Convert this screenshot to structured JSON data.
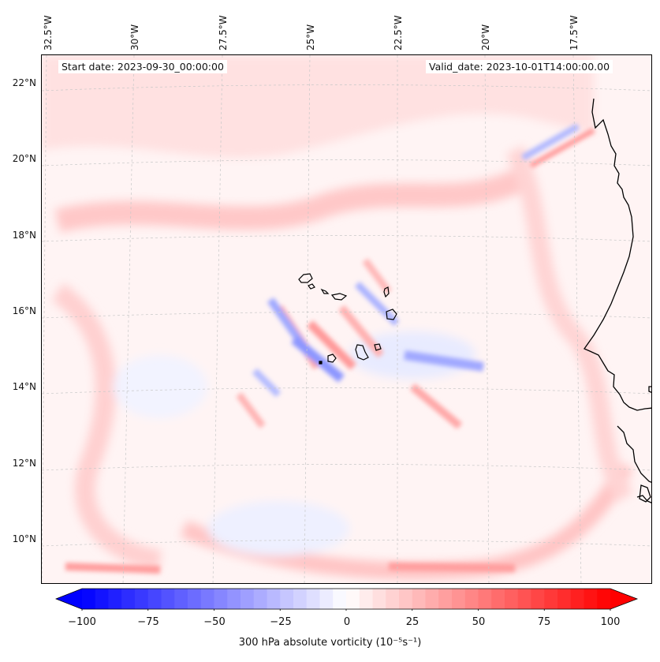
{
  "header": {
    "start_date": "Start date: 2023-09-30_00:00:00",
    "valid_date": "Valid_date: 2023-10-01T14:00:00.00"
  },
  "axes": {
    "lon_labels": [
      "32.5°W",
      "30°W",
      "27.5°W",
      "25°W",
      "22.5°W",
      "20°W",
      "17.5°W"
    ],
    "lat_labels": [
      "22°N",
      "20°N",
      "18°N",
      "16°N",
      "14°N",
      "12°N",
      "10°N"
    ]
  },
  "colorbar": {
    "ticks": [
      "−100",
      "−75",
      "−50",
      "−25",
      "0",
      "25",
      "50",
      "75",
      "100"
    ],
    "label": "300 hPa absolute vorticity (10⁻⁵s⁻¹)",
    "vmin": -100,
    "vmax": 100,
    "levels": 41,
    "negative_color": "#0000ff",
    "positive_color": "#ff0000"
  },
  "map": {
    "field": "300 hPa absolute vorticity",
    "islands": "Cape Verde",
    "coast": "West Africa"
  }
}
